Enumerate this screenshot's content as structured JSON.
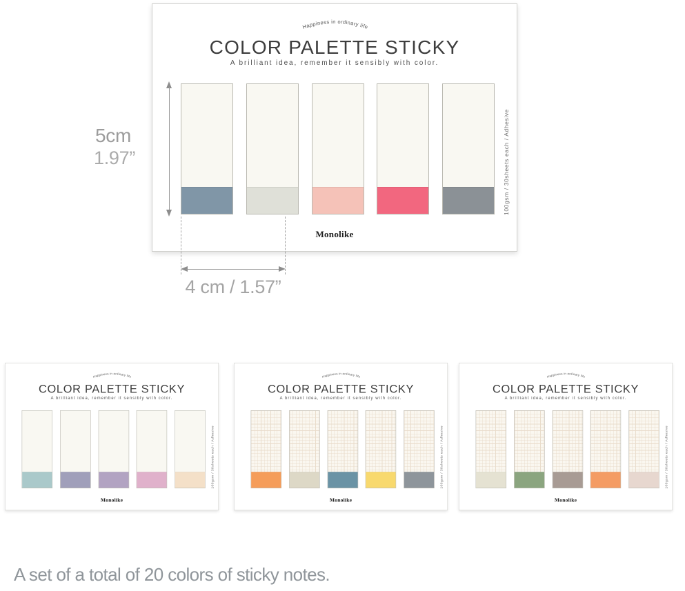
{
  "caption": "A set of a total of 20 colors of sticky notes.",
  "dimension_labels": {
    "height_cm": "5cm",
    "height_inch": "1.97”",
    "width": "4 cm / 1.57”"
  },
  "card_common": {
    "arc_text": "Happiness in ordinary life",
    "title": "COLOR PALETTE STICKY",
    "subtitle": "A brilliant idea, remember it sensibly with color.",
    "brand": "Monolike",
    "side_text": "100gsm / 30sheets each / Adhesive",
    "paper_color": "#f9f8f2"
  },
  "main_card": {
    "pattern": "plain",
    "sticky_colors": [
      "#8096a7",
      "#dfe0d8",
      "#f5c2b8",
      "#f2677f",
      "#8b9196"
    ]
  },
  "variant_cards": [
    {
      "pattern": "plain",
      "sticky_colors": [
        "#aac9ca",
        "#a09fba",
        "#b2a3c2",
        "#e0b1cb",
        "#f4e0c8"
      ]
    },
    {
      "pattern": "grid",
      "sticky_colors": [
        "#f59d5a",
        "#ddd8c6",
        "#6a93a5",
        "#f8d96e",
        "#8e959b"
      ]
    },
    {
      "pattern": "grid",
      "sticky_colors": [
        "#e5e2d2",
        "#8ba57f",
        "#a89b94",
        "#f49c64",
        "#e7d7cf"
      ]
    }
  ]
}
